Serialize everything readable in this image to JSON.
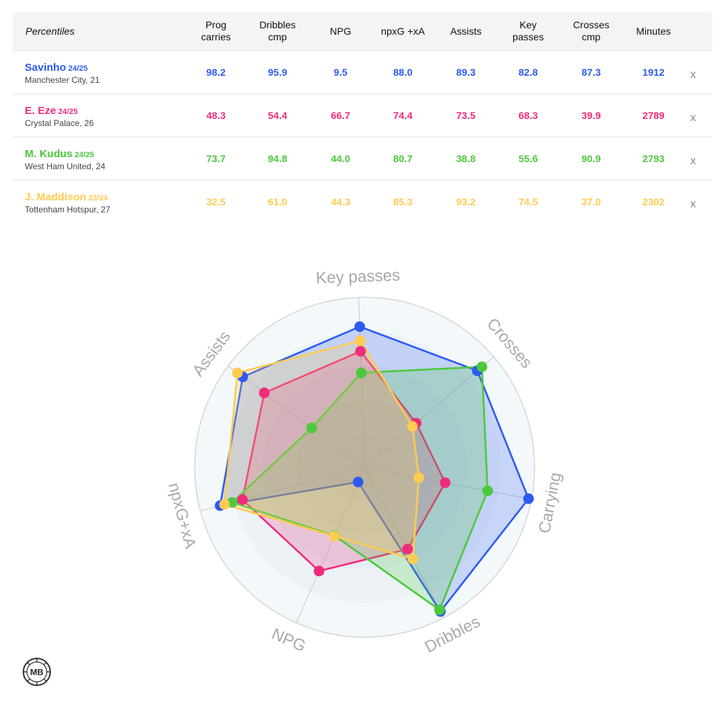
{
  "table": {
    "percentiles_label": "Percentiles",
    "columns": [
      {
        "line1": "Prog",
        "line2": "carries"
      },
      {
        "line1": "Dribbles",
        "line2": "cmp"
      },
      {
        "line1": "NPG",
        "line2": ""
      },
      {
        "line1": "npxG +xA",
        "line2": ""
      },
      {
        "line1": "Assists",
        "line2": ""
      },
      {
        "line1": "Key",
        "line2": "passes"
      },
      {
        "line1": "Crosses",
        "line2": "cmp"
      },
      {
        "line1": "Minutes",
        "line2": ""
      }
    ],
    "remove_label": "x",
    "rows": [
      {
        "name": "Savinho",
        "season": "24/25",
        "team": "Manchester City, 21",
        "color": "#2d5bf0",
        "values": [
          "98.2",
          "95.9",
          "9.5",
          "88.0",
          "89.3",
          "82.8",
          "87.3",
          "1912"
        ]
      },
      {
        "name": "E. Eze",
        "season": "24/25",
        "team": "Crystal Palace, 26",
        "color": "#ef2c7a",
        "values": [
          "48.3",
          "54.4",
          "66.7",
          "74.4",
          "73.5",
          "68.3",
          "39.9",
          "2789"
        ]
      },
      {
        "name": "M. Kudus",
        "season": "24/25",
        "team": "West Ham United, 24",
        "color": "#4cc93c",
        "values": [
          "73.7",
          "94.8",
          "44.0",
          "80.7",
          "38.8",
          "55.6",
          "90.9",
          "2793"
        ]
      },
      {
        "name": "J. Maddison",
        "season": "23/24",
        "team": "Tottenham Hotspur, 27",
        "color": "#ffcb52",
        "values": [
          "32.5",
          "61.0",
          "44.3",
          "85.3",
          "93.2",
          "74.5",
          "37.0",
          "2302"
        ]
      }
    ]
  },
  "chart_data": {
    "type": "radar",
    "axes": [
      "Key passes",
      "Crosses",
      "Carrying",
      "Dribbles",
      "NPG",
      "npxG+xA",
      "Assists"
    ],
    "range": [
      0,
      100
    ],
    "series": [
      {
        "name": "Savinho",
        "color": "#2d5bf0",
        "values": [
          82.8,
          87.3,
          98.2,
          95.9,
          9.5,
          88.0,
          89.3
        ]
      },
      {
        "name": "E. Eze",
        "color": "#ef2c7a",
        "values": [
          68.3,
          39.9,
          48.3,
          54.4,
          66.7,
          74.4,
          73.5
        ]
      },
      {
        "name": "M. Kudus",
        "color": "#4cc93c",
        "values": [
          55.6,
          90.9,
          73.7,
          94.8,
          44.0,
          80.7,
          38.8
        ]
      },
      {
        "name": "J. Maddison",
        "color": "#ffcb52",
        "values": [
          74.5,
          37.0,
          32.5,
          61.0,
          44.3,
          85.3,
          93.2
        ]
      }
    ]
  },
  "logo_text": "MB"
}
